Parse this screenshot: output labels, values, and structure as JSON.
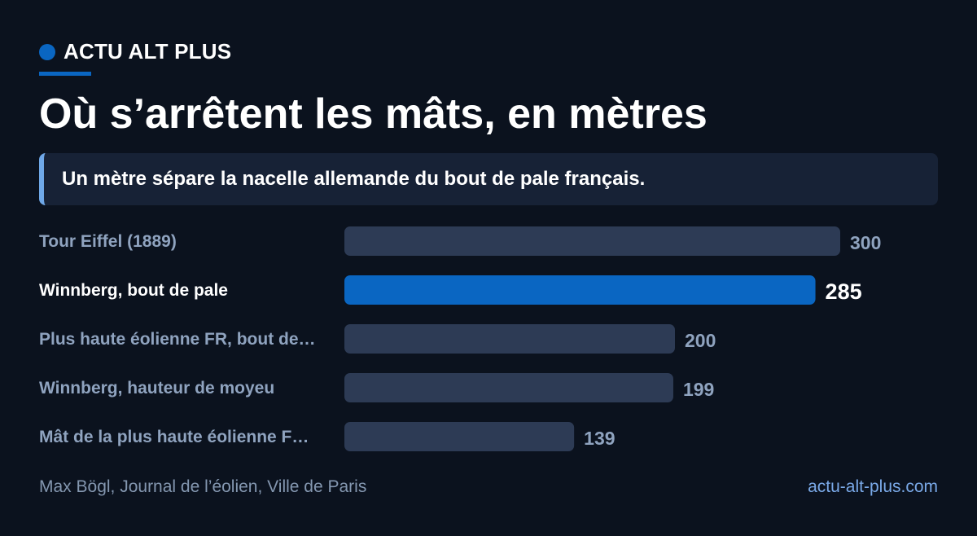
{
  "brand": {
    "name": "ACTU ALT PLUS"
  },
  "header": {
    "title": "Où s’arrêtent les mâts, en mètres",
    "subtitle": "Un mètre sépare la nacelle allemande du bout de pale français."
  },
  "chart_data": {
    "type": "bar",
    "orientation": "horizontal",
    "categories": [
      "Tour Eiffel (1889)",
      "Winnberg, bout de pale",
      "Plus haute éolienne FR, bout de…",
      "Winnberg, hauteur de moyeu",
      "Mât de la plus haute éolienne F…"
    ],
    "values": [
      300,
      285,
      200,
      199,
      139
    ],
    "value_labels": [
      "300",
      "285",
      "200",
      "199",
      "139"
    ],
    "highlight_index": 1,
    "xlim": [
      0,
      300
    ],
    "grid": false,
    "colors": {
      "bar": "#2d3b55",
      "highlight": "#0a66c2",
      "label": "#8fa3bf",
      "highlight_label": "#ffffff"
    }
  },
  "footer": {
    "source": "Max Bögl, Journal de l’éolien, Ville de Paris",
    "url": "actu-alt-plus.com"
  }
}
